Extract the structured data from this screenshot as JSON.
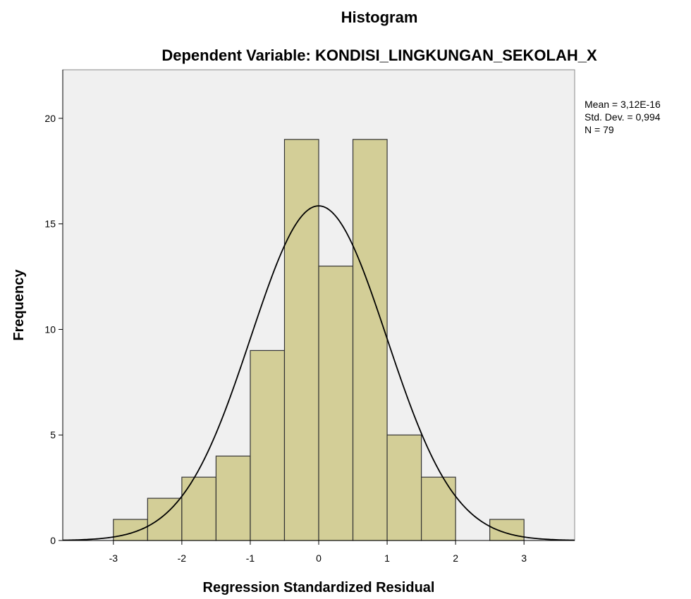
{
  "chart_data": {
    "type": "histogram",
    "title": "Histogram",
    "subtitle": "Dependent Variable: KONDISI_LINGKUNGAN_SEKOLAH_X",
    "x_label": "Regression Standardized Residual",
    "y_label": "Frequency",
    "bins": [
      -3,
      -2.5,
      -2,
      -1.5,
      -1,
      -0.5,
      0,
      0.5,
      1,
      1.5,
      2,
      2.5,
      3
    ],
    "values": [
      1,
      2,
      3,
      4,
      9,
      19,
      13,
      19,
      5,
      3,
      0,
      1
    ],
    "color": "#d3ce97",
    "xlim": [
      -3.74,
      3.74
    ],
    "xticks": [
      -3,
      -2,
      -1,
      0,
      1,
      2,
      3
    ],
    "ylim": [
      0,
      22.3
    ],
    "yticks": [
      0,
      5,
      10,
      15,
      20
    ],
    "normal_curve": {
      "mean": 3.12e-16,
      "sd": 0.994,
      "n": 79
    },
    "stats": [
      "Mean = 3,12E-16",
      "Std. Dev. = 0,994",
      "N = 79"
    ]
  }
}
